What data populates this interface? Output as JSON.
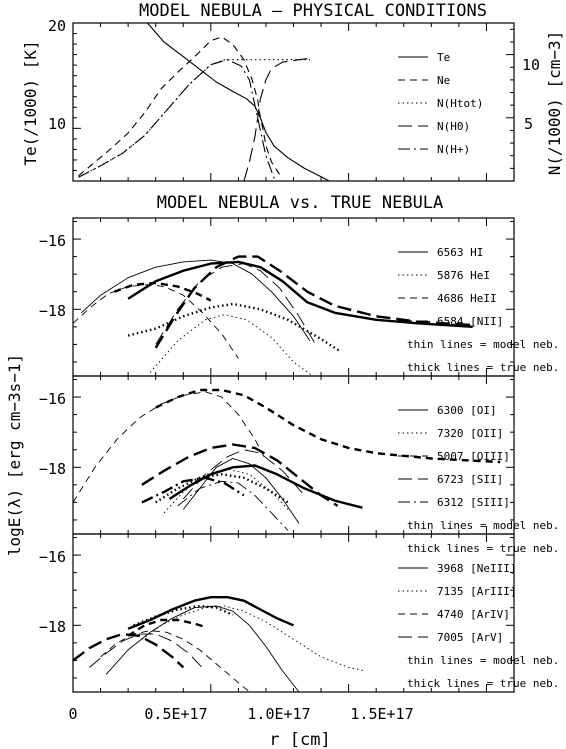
{
  "chart_data": [
    {
      "type": "line",
      "title": "MODEL NEBULA – PHYSICAL CONDITIONS",
      "ylabel_left": "Te(/1000) [K]",
      "ylabel_right": "N(/1000) [cm−3]",
      "xlim": [
        0,
        1.6e+17
      ],
      "ylim_left": [
        5,
        20
      ],
      "ylim_right": [
        0,
        12.5
      ],
      "y_ticks_left": [
        "20",
        "10"
      ],
      "y_ticks_right": [
        "10",
        "5"
      ],
      "legend_position": "right",
      "series": [
        {
          "name": "Te",
          "style": "solid",
          "axis": "left",
          "x": [
            2.7e+16,
            3.3e+16,
            4e+16,
            4.6e+16,
            5.2e+16,
            5.8e+16,
            6.3e+16,
            6.6e+16,
            6.8e+16,
            7e+16,
            7.3e+16,
            7.8e+16,
            8.4e+16,
            9e+16,
            9.3e+16
          ],
          "y": [
            20,
            18.2,
            16.8,
            15.6,
            14.4,
            13.5,
            12.8,
            12.1,
            11.0,
            9.6,
            8.3,
            7.2,
            6.2,
            5.4,
            5.0
          ]
        },
        {
          "name": "Ne",
          "style": "dashed",
          "axis": "right",
          "x": [
            2000000000000000.0,
            8000000000000000.0,
            1.4e+16,
            2e+16,
            2.6e+16,
            3.2e+16,
            3.8e+16,
            4.4e+16,
            5e+16,
            5.4e+16,
            5.8e+16,
            6.2e+16,
            6.5e+16,
            6.7e+16,
            6.8e+16,
            6.9e+16,
            7e+16,
            7.2e+16,
            7.5e+16
          ],
          "y": [
            0.4,
            1.5,
            2.6,
            3.8,
            5.4,
            7.3,
            8.6,
            9.8,
            11.1,
            11.4,
            10.8,
            9.6,
            8.0,
            6.4,
            5.0,
            4.0,
            2.8,
            1.5,
            0.5
          ]
        },
        {
          "name": "N(Htot)",
          "style": "dotted",
          "axis": "right",
          "x": [
            2000000000000000.0,
            1e+16,
            1.8e+16,
            2.6e+16,
            3.4e+16,
            4.2e+16,
            5e+16,
            5.5e+16,
            6.2e+16,
            7e+16,
            8e+16,
            8.6e+16
          ],
          "y": [
            0.3,
            1.2,
            2.2,
            3.6,
            5.6,
            7.6,
            9.2,
            9.6,
            9.6,
            9.6,
            9.6,
            9.6
          ]
        },
        {
          "name": "N(H0)",
          "style": "longdash",
          "axis": "right",
          "x": [
            6.2e+16,
            6.4e+16,
            6.6e+16,
            6.7e+16,
            6.8e+16,
            7e+16,
            7.2e+16,
            7.6e+16,
            8.2e+16,
            8.6e+16
          ],
          "y": [
            0.0,
            1.5,
            3.5,
            5.0,
            6.5,
            8.0,
            8.9,
            9.4,
            9.6,
            9.7
          ]
        },
        {
          "name": "N(H+)",
          "style": "dashdot",
          "axis": "right",
          "x": [
            2000000000000000.0,
            1e+16,
            1.8e+16,
            2.6e+16,
            3.4e+16,
            4.2e+16,
            5e+16,
            5.6e+16,
            6.1e+16,
            6.4e+16,
            6.6e+16,
            6.8e+16,
            7e+16,
            7.3e+16
          ],
          "y": [
            0.3,
            1.2,
            2.2,
            3.6,
            5.6,
            7.6,
            9.2,
            9.6,
            9.1,
            8.0,
            6.0,
            4.0,
            2.0,
            0.2
          ]
        }
      ]
    },
    {
      "type": "line",
      "title": "MODEL NEBULA vs. TRUE NEBULA",
      "ylabel": "logE(λ) [erg cm−3s−1]",
      "xlim": [
        0,
        1.6e+17
      ],
      "ylim": [
        -19.9,
        -15.4
      ],
      "y_ticks": [
        "−16",
        "−18"
      ],
      "legend_position": "right",
      "legend_notes": [
        "thin lines = model neb.",
        "thick lines = true neb."
      ],
      "series": [
        {
          "name": "6563 HI",
          "style": "solid",
          "model": {
            "x": [
              3000000000000000.0,
              1e+16,
              2e+16,
              3e+16,
              4e+16,
              5e+16,
              5.8e+16,
              6.5e+16,
              7.2e+16,
              8e+16,
              8.6e+16
            ],
            "y": [
              -18.1,
              -17.6,
              -17.1,
              -16.8,
              -16.65,
              -16.6,
              -16.7,
              -17.0,
              -17.5,
              -18.2,
              -18.9
            ]
          },
          "true": {
            "x": [
              2e+16,
              3e+16,
              4e+16,
              5e+16,
              6e+16,
              6.8e+16,
              7.6e+16,
              8.5e+16,
              9.5e+16,
              1.1e+17,
              1.25e+17,
              1.45e+17
            ],
            "y": [
              -17.7,
              -17.2,
              -16.9,
              -16.7,
              -16.65,
              -16.8,
              -17.2,
              -17.8,
              -18.1,
              -18.3,
              -18.4,
              -18.5
            ]
          }
        },
        {
          "name": "5876 HeI",
          "style": "dotted",
          "model": {
            "x": [
              2.8e+16,
              3.8e+16,
              4.8e+16,
              5.5e+16,
              6.3e+16,
              7.2e+16,
              8e+16,
              8.7e+16
            ],
            "y": [
              -19.8,
              -18.9,
              -18.3,
              -18.15,
              -18.3,
              -18.8,
              -19.5,
              -20.0
            ]
          },
          "true": {
            "x": [
              2e+16,
              3e+16,
              4e+16,
              5e+16,
              5.8e+16,
              6.8e+16,
              7.8e+16,
              9e+16,
              9.7e+16
            ],
            "y": [
              -18.75,
              -18.55,
              -18.2,
              -17.95,
              -17.85,
              -18.0,
              -18.3,
              -18.85,
              -19.2
            ]
          }
        },
        {
          "name": "4686 HeII",
          "style": "dashed",
          "model": {
            "x": [
              0.0,
              7000000000000000.0,
              1.3e+16,
              2e+16,
              2.7e+16,
              3.3e+16,
              4e+16,
              4.7e+16,
              5.4e+16,
              6e+16
            ],
            "y": [
              -18.4,
              -17.9,
              -17.55,
              -17.35,
              -17.3,
              -17.35,
              -17.6,
              -18.1,
              -18.7,
              -19.4
            ]
          },
          "true": {
            "x": [
              1.5e+16,
              2.2e+16,
              3e+16,
              3.8e+16,
              4.5e+16,
              5e+16
            ],
            "y": [
              -17.5,
              -17.3,
              -17.25,
              -17.35,
              -17.55,
              -17.75
            ]
          }
        },
        {
          "name": "6584 [NII]",
          "style": "longdash",
          "model": {
            "x": [
              3e+16,
              3.8e+16,
              4.6e+16,
              5.4e+16,
              6.2e+16,
              6.8e+16,
              7.5e+16,
              8.2e+16,
              8.8e+16
            ],
            "y": [
              -19.0,
              -18.0,
              -17.2,
              -16.8,
              -16.7,
              -16.9,
              -17.4,
              -18.2,
              -19.0
            ]
          },
          "true": {
            "x": [
              3e+16,
              3.7e+16,
              4.4e+16,
              5.2e+16,
              6e+16,
              6.7e+16,
              7.5e+16,
              8.5e+16,
              9.5e+16,
              1.1e+17,
              1.25e+17,
              1.45e+17
            ],
            "y": [
              -19.1,
              -18.2,
              -17.4,
              -16.8,
              -16.5,
              -16.5,
              -16.9,
              -17.5,
              -17.9,
              -18.2,
              -18.35,
              -18.45
            ]
          }
        }
      ]
    },
    {
      "type": "line",
      "xlim": [
        0,
        1.6e+17
      ],
      "ylim": [
        -19.9,
        -15.4
      ],
      "y_ticks": [
        "−16",
        "−18"
      ],
      "legend_position": "right",
      "legend_notes": [
        "thin lines = model neb.",
        "thick lines = true neb."
      ],
      "series": [
        {
          "name": "6300 [OI]",
          "style": "solid",
          "model": {
            "x": [
              4e+16,
              4.6e+16,
              5.2e+16,
              5.8e+16,
              6.4e+16,
              7e+16,
              7.6e+16,
              8.2e+16
            ],
            "y": [
              -19.2,
              -18.6,
              -18.0,
              -17.75,
              -17.9,
              -18.3,
              -18.9,
              -19.6
            ]
          },
          "true": {
            "x": [
              3.5e+16,
              4.3e+16,
              5e+16,
              5.8e+16,
              6.6e+16,
              7.4e+16,
              8.4e+16,
              9.5e+16,
              1.05e+17
            ],
            "y": [
              -18.9,
              -18.5,
              -18.2,
              -18.0,
              -17.95,
              -18.2,
              -18.6,
              -18.95,
              -19.15
            ]
          }
        },
        {
          "name": "7320 [OII]",
          "style": "dotted",
          "model": {
            "x": [
              3.3e+16,
              4e+16,
              4.8e+16,
              5.6e+16,
              6.4e+16,
              7.2e+16,
              7.8e+16
            ],
            "y": [
              -19.3,
              -18.7,
              -18.2,
              -18.05,
              -18.2,
              -18.7,
              -19.2
            ]
          },
          "true": {
            "x": [
              3e+16,
              3.8e+16,
              4.6e+16,
              5.4e+16,
              6.2e+16,
              7e+16,
              7.8e+16
            ],
            "y": [
              -19.0,
              -18.6,
              -18.3,
              -18.2,
              -18.3,
              -18.6,
              -19.0
            ]
          }
        },
        {
          "name": "5007 [OIII]",
          "style": "dashed",
          "model": {
            "x": [
              0.0,
              8000000000000000.0,
              1.6e+16,
              2.4e+16,
              3.2e+16,
              4e+16,
              4.8e+16,
              5.4e+16,
              6e+16,
              6.6e+16,
              7e+16
            ],
            "y": [
              -19.0,
              -18.0,
              -17.2,
              -16.6,
              -16.2,
              -15.95,
              -15.85,
              -16.0,
              -16.5,
              -17.2,
              -17.8
            ]
          },
          "true": {
            "x": [
              3e+16,
              3.8e+16,
              4.6e+16,
              5.4e+16,
              6.2e+16,
              7e+16,
              8e+16,
              9e+16,
              1e+17,
              1.1e+17,
              1.3e+17,
              1.55e+17
            ],
            "y": [
              -16.3,
              -16.0,
              -15.8,
              -15.8,
              -15.95,
              -16.3,
              -16.8,
              -17.2,
              -17.45,
              -17.6,
              -17.75,
              -17.85
            ]
          }
        },
        {
          "name": "6723 [SII]",
          "style": "longdash",
          "model": {
            "x": [
              4e+16,
              4.8e+16,
              5.6e+16,
              6.2e+16,
              6.8e+16,
              7.6e+16,
              8.4e+16
            ],
            "y": [
              -18.9,
              -18.2,
              -17.7,
              -17.5,
              -17.6,
              -18.1,
              -18.8
            ]
          },
          "true": {
            "x": [
              2.5e+16,
              3.3e+16,
              4.2e+16,
              5e+16,
              5.8e+16,
              6.6e+16,
              7.4e+16,
              8.2e+16,
              9e+16,
              9.6e+16
            ],
            "y": [
              -18.5,
              -18.1,
              -17.7,
              -17.45,
              -17.35,
              -17.45,
              -17.8,
              -18.3,
              -18.8,
              -19.1
            ]
          }
        },
        {
          "name": "6312 [SIII]",
          "style": "dashdot",
          "model": {
            "x": [
              3.8e+16,
              4.6e+16,
              5.4e+16,
              6e+16,
              6.6e+16,
              7.2e+16,
              7.8e+16
            ],
            "y": [
              -19.1,
              -18.6,
              -18.4,
              -18.45,
              -18.8,
              -19.3,
              -19.8
            ]
          },
          "true": {
            "x": [
              2.5e+16,
              3.3e+16,
              4e+16,
              4.8e+16,
              5.5e+16,
              6.2e+16
            ],
            "y": [
              -19.0,
              -18.7,
              -18.4,
              -18.3,
              -18.45,
              -18.8
            ]
          }
        }
      ]
    },
    {
      "type": "line",
      "xlabel": "r [cm]",
      "xlim": [
        0,
        1.6e+17
      ],
      "x_ticks": [
        "0",
        "0.5E+17",
        "1.0E+17",
        "1.5E+17"
      ],
      "ylim": [
        -19.9,
        -15.4
      ],
      "y_ticks": [
        "−16",
        "−18"
      ],
      "legend_position": "right",
      "legend_notes": [
        "thin lines = model neb.",
        "thick lines = true neb."
      ],
      "series": [
        {
          "name": "3968 [NeIII]",
          "style": "solid",
          "model": {
            "x": [
              1.2e+16,
              2e+16,
              2.8e+16,
              3.6e+16,
              4.4e+16,
              5.2e+16,
              5.8e+16,
              6.4e+16,
              7e+16,
              7.6e+16,
              8.2e+16
            ],
            "y": [
              -19.4,
              -18.7,
              -18.2,
              -17.8,
              -17.5,
              -17.45,
              -17.6,
              -18.0,
              -18.6,
              -19.3,
              -19.9
            ]
          },
          "true": {
            "x": [
              2e+16,
              2.8e+16,
              3.6e+16,
              4.4e+16,
              5e+16,
              5.6e+16,
              6.2e+16,
              6.8e+16,
              7.4e+16,
              8e+16
            ],
            "y": [
              -18.1,
              -17.85,
              -17.55,
              -17.3,
              -17.2,
              -17.2,
              -17.3,
              -17.55,
              -17.8,
              -18.0
            ]
          }
        },
        {
          "name": "7135 [ArIII]",
          "style": "dotted",
          "model": {
            "x": [
              2.5e+16,
              3.2e+16,
              4e+16,
              4.8e+16,
              5.5e+16,
              6.2e+16,
              7e+16,
              8e+16,
              9e+16,
              1e+17,
              1.06e+17
            ],
            "y": [
              -18.4,
              -18.0,
              -17.7,
              -17.5,
              -17.45,
              -17.6,
              -17.9,
              -18.4,
              -18.9,
              -19.2,
              -19.3
            ]
          },
          "true": {
            "x": [
              2.2e+16,
              3e+16,
              3.8e+16,
              4.6e+16,
              5.2e+16,
              5.8e+16
            ],
            "y": [
              -18.0,
              -17.75,
              -17.55,
              -17.45,
              -17.5,
              -17.7
            ]
          }
        },
        {
          "name": "4740 [ArIV]",
          "style": "dashed",
          "model": {
            "x": [
              1e+16,
              1.6e+16,
              2.2e+16,
              2.8e+16,
              3.4e+16,
              4e+16,
              4.6e+16,
              5.2e+16,
              5.8e+16,
              6.4e+16,
              7e+16
            ],
            "y": [
              -18.9,
              -18.5,
              -18.25,
              -18.15,
              -18.2,
              -18.4,
              -18.7,
              -19.1,
              -19.5,
              -19.9,
              -20.2
            ]
          },
          "true": {
            "x": [
              2e+16,
              2.6e+16,
              3.2e+16,
              3.8e+16,
              4.4e+16,
              4.8e+16
            ],
            "y": [
              -18.3,
              -18.0,
              -17.85,
              -17.85,
              -17.95,
              -18.05
            ]
          }
        },
        {
          "name": "7005 [ArV]",
          "style": "longdash",
          "model": {
            "x": [
              6000000000000000.0,
              1.2e+16,
              1.8e+16,
              2.4e+16,
              3e+16,
              3.6e+16,
              4.2e+16,
              4.8e+16
            ],
            "y": [
              -19.2,
              -18.8,
              -18.45,
              -18.25,
              -18.25,
              -18.45,
              -18.8,
              -19.3
            ]
          },
          "true": {
            "x": [
              0.0,
              6000000000000000.0,
              1.2e+16,
              1.8e+16,
              2.4e+16,
              3e+16,
              3.6e+16,
              4e+16
            ],
            "y": [
              -19.0,
              -18.65,
              -18.4,
              -18.25,
              -18.3,
              -18.55,
              -18.9,
              -19.2
            ]
          }
        }
      ]
    }
  ]
}
